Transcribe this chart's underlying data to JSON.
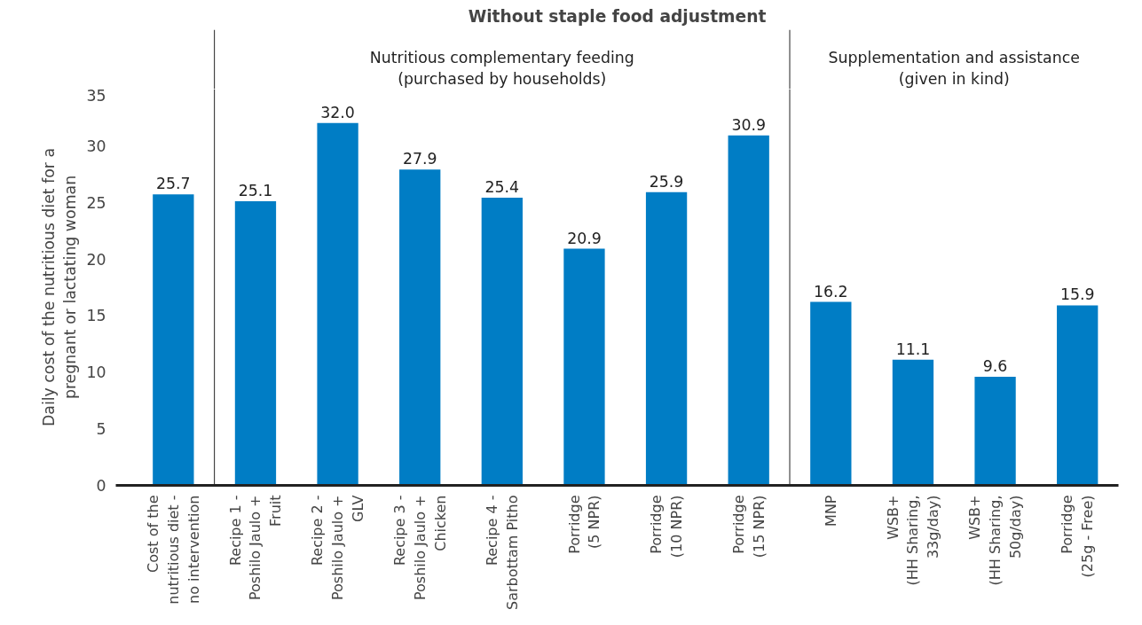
{
  "chart_data": {
    "type": "bar",
    "title": "Without staple food adjustment",
    "ylabel": "Daily cost of the nutritious diet for a\npregnant or lactating woman",
    "categories": [
      "Cost of the\nnutritious diet -\nno intervention",
      "Recipe 1 -\nPoshilo Jaulo +\nFruit",
      "Recipe 2 -\nPoshilo Jaulo +\nGLV",
      "Recipe 3 -\nPoshilo Jaulo +\nChicken",
      "Recipe 4 -\nSarbottam Pitho",
      "Porridge\n(5 NPR)",
      "Porridge\n(10 NPR)",
      "Porridge\n(15 NPR)",
      "MNP",
      "WSB+\n(HH Sharing,\n33g/day)",
      "WSB+\n(HH Sharing,\n50g/day)",
      "Porridge\n(25g - Free)"
    ],
    "values": [
      25.7,
      25.1,
      32.0,
      27.9,
      25.4,
      20.9,
      25.9,
      30.9,
      16.2,
      11.1,
      9.6,
      15.9
    ],
    "value_labels": [
      "25.7",
      "25.1",
      "32.0",
      "27.9",
      "25.4",
      "20.9",
      "25.9",
      "30.9",
      "16.2",
      "11.1",
      "9.6",
      "15.9"
    ],
    "color": "#007dc5",
    "ylim": [
      0,
      35
    ],
    "yticks": [
      0,
      5,
      10,
      15,
      20,
      25,
      30,
      35
    ],
    "grid": false,
    "annotations": [
      "Nutritious complementary feeding\n(purchased by households)",
      "Supplementation and assistance\n(given in kind)"
    ]
  }
}
